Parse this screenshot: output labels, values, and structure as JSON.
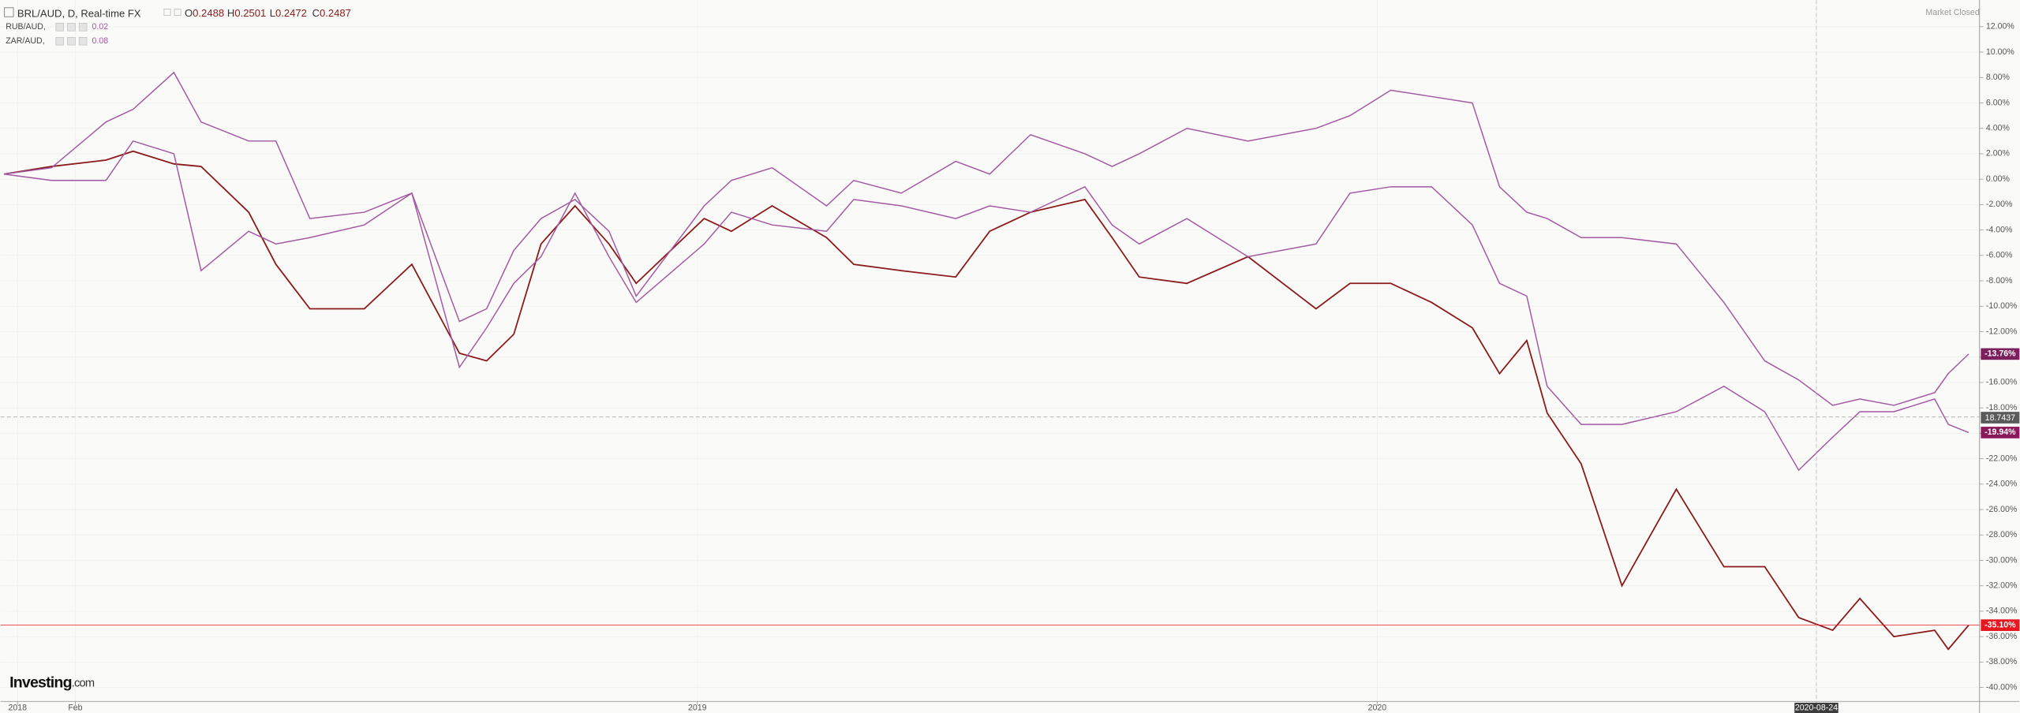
{
  "chart_data": {
    "type": "line",
    "title": "BRL/AUD, D, Real-time FX",
    "ohlc": [
      {
        "key": "O",
        "value": "0.2488"
      },
      {
        "key": "H",
        "value": "0.2501"
      },
      {
        "key": "L",
        "value": "0.2472"
      },
      {
        "key": "C",
        "value": "0.2487"
      }
    ],
    "status": "Market Closed",
    "brand": "Investing",
    "brand_suffix": ".com",
    "crosshair_label": "18.7437",
    "x": [
      2017.98,
      2018.05,
      2018.13,
      2018.17,
      2018.23,
      2018.27,
      2018.34,
      2018.38,
      2018.43,
      2018.51,
      2018.58,
      2018.65,
      2018.69,
      2018.73,
      2018.77,
      2018.82,
      2018.87,
      2018.91,
      2019.01,
      2019.05,
      2019.11,
      2019.19,
      2019.23,
      2019.3,
      2019.38,
      2019.43,
      2019.49,
      2019.57,
      2019.61,
      2019.65,
      2019.72,
      2019.81,
      2019.91,
      2019.96,
      2020.02,
      2020.08,
      2020.14,
      2020.18,
      2020.22,
      2020.25,
      2020.3,
      2020.36,
      2020.44,
      2020.51,
      2020.57,
      2020.62,
      2020.67,
      2020.71,
      2020.76,
      2020.82,
      2020.84,
      2020.87
    ],
    "series": [
      {
        "color": "#8b1a1a",
        "last_color": "#e8171f",
        "values": [
          0.4,
          1.0,
          1.5,
          2.2,
          1.2,
          1.0,
          -2.6,
          -6.7,
          -10.2,
          -10.2,
          -6.7,
          -13.7,
          -14.3,
          -12.2,
          -5.1,
          -2.1,
          -5.1,
          -8.2,
          -3.1,
          -4.1,
          -2.1,
          -4.6,
          -6.7,
          -7.2,
          -7.7,
          -4.1,
          -2.6,
          -1.6,
          -4.6,
          -7.7,
          -8.2,
          -6.1,
          -10.2,
          -8.2,
          -8.2,
          -9.7,
          -11.7,
          -15.3,
          -12.7,
          -18.4,
          -22.4,
          -32,
          -24.4,
          -30.5,
          -30.5,
          -34.5,
          -35.5,
          -33,
          -36,
          -35.5,
          -37,
          -35.1
        ],
        "value_labels": [
          null,
          null,
          null,
          null,
          null,
          null,
          null,
          null,
          null,
          null,
          null,
          null,
          null,
          null,
          null,
          null,
          null,
          null,
          null,
          null,
          null,
          null,
          null,
          null,
          null,
          null,
          null,
          null,
          null,
          null,
          null,
          null,
          null,
          null,
          null,
          null,
          null,
          null,
          null,
          null,
          null,
          null,
          null,
          null,
          null,
          null,
          null,
          null,
          null,
          null,
          null,
          "-35.10%"
        ]
      },
      {
        "name": "RUB/AUD,",
        "legend_value": "0.02",
        "color": "#a258a2",
        "last_color": "#8b1a5a",
        "values": [
          0.4,
          -0.1,
          -0.1,
          3.0,
          2.0,
          -7.2,
          -4.1,
          -5.1,
          -4.6,
          -3.6,
          -1.1,
          -14.8,
          -11.7,
          -8.2,
          -6.1,
          -1.1,
          -6.1,
          -9.7,
          -5.1,
          -2.6,
          -3.6,
          -4.1,
          -1.6,
          -2.1,
          -3.1,
          -2.1,
          -2.6,
          -0.6,
          -3.6,
          -5.1,
          -3.1,
          -6.1,
          -5.1,
          -1.1,
          -0.6,
          -0.6,
          -3.6,
          -8.2,
          -9.2,
          -16.3,
          -19.3,
          -19.3,
          -18.3,
          -16.3,
          -18.3,
          -22.9,
          -20.3,
          -18.3,
          -18.3,
          -17.3,
          -19.3,
          -19.94
        ],
        "value_labels": [
          null,
          null,
          null,
          null,
          null,
          null,
          null,
          null,
          null,
          null,
          null,
          null,
          null,
          null,
          null,
          null,
          null,
          null,
          null,
          null,
          null,
          null,
          null,
          null,
          null,
          null,
          null,
          null,
          null,
          null,
          null,
          null,
          null,
          null,
          null,
          null,
          null,
          null,
          null,
          null,
          null,
          null,
          null,
          null,
          null,
          null,
          null,
          null,
          null,
          null,
          null,
          "-19.94%"
        ]
      },
      {
        "name": "ZAR/AUD,",
        "legend_value": "0.08",
        "color": "#a258a2",
        "last_color": "#7b1f5e",
        "values": [
          0.4,
          0.9,
          4.5,
          5.5,
          8.4,
          4.5,
          3.0,
          3.0,
          -3.1,
          -2.6,
          -1.1,
          -11.2,
          -10.2,
          -5.6,
          -3.1,
          -1.6,
          -4.1,
          -9.2,
          -2.1,
          -0.1,
          0.9,
          -2.1,
          -0.1,
          -1.1,
          1.4,
          0.4,
          3.5,
          2.0,
          1.0,
          2.0,
          4.0,
          3.0,
          4.0,
          5.0,
          7.0,
          6.5,
          6.0,
          -0.6,
          -2.6,
          -3.1,
          -4.6,
          -4.6,
          -5.1,
          -9.7,
          -14.3,
          -15.8,
          -17.8,
          -17.3,
          -17.8,
          -16.8,
          -15.3,
          -13.76
        ],
        "value_labels": [
          null,
          null,
          null,
          null,
          null,
          null,
          null,
          null,
          null,
          null,
          null,
          null,
          null,
          null,
          null,
          null,
          null,
          null,
          null,
          null,
          null,
          null,
          null,
          null,
          null,
          null,
          null,
          null,
          null,
          null,
          null,
          null,
          null,
          null,
          null,
          null,
          null,
          null,
          null,
          null,
          null,
          null,
          null,
          null,
          null,
          null,
          null,
          null,
          null,
          null,
          null,
          "-13.76%"
        ]
      }
    ],
    "xlim": [
      2017.975,
      2020.886
    ],
    "xticks": [
      2018,
      {
        "value": 2018.085,
        "label": "Feb"
      },
      2019,
      2020,
      {
        "value": 2020.646,
        "label": "2020-08-24"
      }
    ],
    "ylim": [
      -41.1,
      14.1
    ],
    "yticks": [
      {
        "value": 12,
        "label": "12.00%"
      },
      {
        "value": 10,
        "label": "10.00%"
      },
      {
        "value": 8,
        "label": "8.00%"
      },
      {
        "value": 6,
        "label": "6.00%"
      },
      {
        "value": 4,
        "label": "4.00%"
      },
      {
        "value": 2,
        "label": "2.00%"
      },
      {
        "value": 0,
        "label": "0.00%"
      },
      {
        "value": -2,
        "label": "-2.00%"
      },
      {
        "value": -4,
        "label": "-4.00%"
      },
      {
        "value": -6,
        "label": "-6.00%"
      },
      {
        "value": -8,
        "label": "-8.00%"
      },
      {
        "value": -10,
        "label": "-10.00%"
      },
      {
        "value": -12,
        "label": "-12.00%"
      },
      {
        "value": -14,
        "label": "-14.00%"
      },
      {
        "value": -16,
        "label": "-16.00%"
      },
      {
        "value": -18,
        "label": "-18.00%"
      },
      {
        "value": -20,
        "label": "-20.00%"
      },
      {
        "value": -22,
        "label": "-22.00%"
      },
      {
        "value": -24,
        "label": "-24.00%"
      },
      {
        "value": -26,
        "label": "-26.00%"
      },
      {
        "value": -28,
        "label": "-28.00%"
      },
      {
        "value": -30,
        "label": "-30.00%"
      },
      {
        "value": -32,
        "label": "-32.00%"
      },
      {
        "value": -34,
        "label": "-34.00%"
      },
      {
        "value": -36,
        "label": "-36.00%"
      },
      {
        "value": -38,
        "label": "-38.00%"
      },
      {
        "value": -40,
        "label": "-40.00%"
      }
    ],
    "grid": true
  }
}
